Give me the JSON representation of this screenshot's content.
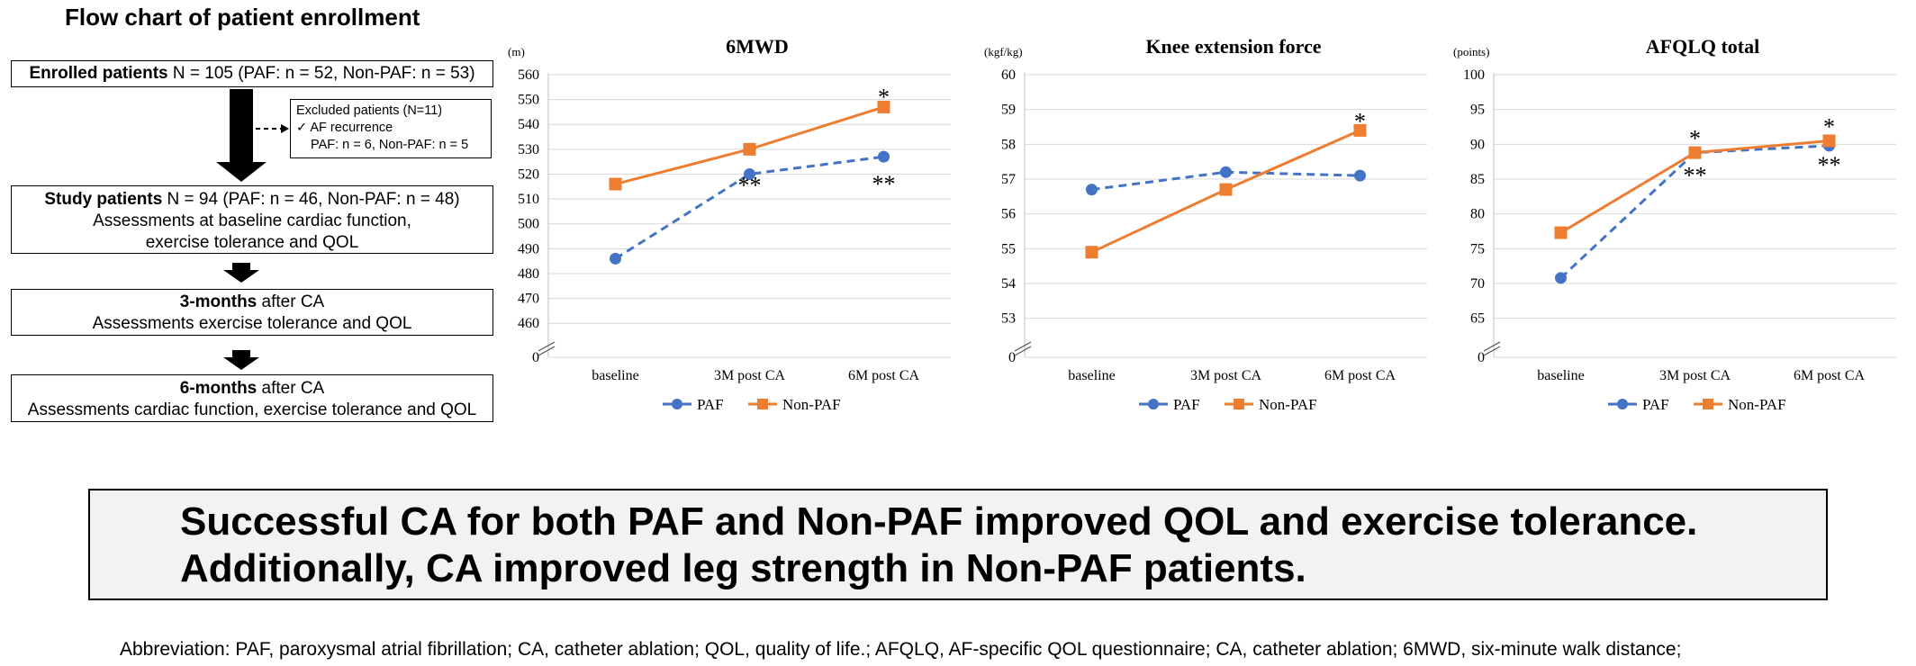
{
  "flowchart": {
    "title": "Flow chart of patient enrollment",
    "enrolled": {
      "bold": "Enrolled patients",
      "rest": " N = 105 (PAF: n = 52, Non-PAF: n = 53)"
    },
    "excluded": {
      "line1": "Excluded patients  (N=11)",
      "line2": "✓  AF recurrence",
      "line3": "PAF: n = 6, Non-PAF: n = 5"
    },
    "study": {
      "bold": "Study patients",
      "rest": " N = 94 (PAF: n = 46, Non-PAF: n = 48)",
      "line2": "Assessments at baseline cardiac function,",
      "line3": "exercise tolerance and QOL"
    },
    "three_months": {
      "bold": "3-months",
      "rest": " after CA",
      "line2": "Assessments exercise tolerance and QOL"
    },
    "six_months": {
      "bold": "6-months",
      "rest": " after CA",
      "line2": "Assessments cardiac function, exercise tolerance and QOL"
    }
  },
  "colors": {
    "paf": "#4472C4",
    "nonpaf": "#ED7D31",
    "grid": "#d9d9d9"
  },
  "chart_data": [
    {
      "type": "line",
      "title": "6MWD",
      "unit": "(m)",
      "categories": [
        "baseline",
        "3M post CA",
        "6M post CA"
      ],
      "yticks": [
        "0",
        "460",
        "470",
        "480",
        "490",
        "500",
        "510",
        "520",
        "530",
        "540",
        "550",
        "560"
      ],
      "ylim": [
        455,
        560
      ],
      "axis_break": true,
      "series": [
        {
          "name": "PAF",
          "values": [
            486,
            520,
            527
          ],
          "style": "dashed",
          "marker": "circle"
        },
        {
          "name": "Non-PAF",
          "values": [
            516,
            530,
            547
          ],
          "style": "solid",
          "marker": "square"
        }
      ],
      "annotations": [
        {
          "text": "**",
          "category": 1,
          "value": 516
        },
        {
          "text": "*",
          "category": 2,
          "value": 551.5
        },
        {
          "text": "**",
          "category": 2,
          "value": 516.5
        }
      ],
      "legend": [
        "PAF",
        "Non-PAF"
      ]
    },
    {
      "type": "line",
      "title": "Knee extension force",
      "unit": "(kgf/kg)",
      "categories": [
        "baseline",
        "3M post CA",
        "6M post CA"
      ],
      "yticks": [
        "0",
        "53",
        "54",
        "55",
        "56",
        "57",
        "58",
        "59",
        "60"
      ],
      "ylim": [
        52.5,
        60
      ],
      "axis_break": true,
      "series": [
        {
          "name": "PAF",
          "values": [
            56.7,
            57.2,
            57.1
          ],
          "style": "dashed",
          "marker": "circle"
        },
        {
          "name": "Non-PAF",
          "values": [
            54.9,
            56.7,
            58.4
          ],
          "style": "solid",
          "marker": "square"
        }
      ],
      "annotations": [
        {
          "text": "*",
          "category": 2,
          "value": 58.7
        }
      ],
      "legend": [
        "PAF",
        "Non-PAF"
      ]
    },
    {
      "type": "line",
      "title": "AFQLQ total",
      "unit": "(points)",
      "categories": [
        "baseline",
        "3M post CA",
        "6M post CA"
      ],
      "yticks": [
        "0",
        "65",
        "70",
        "75",
        "80",
        "85",
        "90",
        "95",
        "100"
      ],
      "ylim": [
        62.5,
        100
      ],
      "axis_break": true,
      "series": [
        {
          "name": "PAF",
          "values": [
            70.8,
            88.8,
            89.8
          ],
          "style": "dashed",
          "marker": "circle"
        },
        {
          "name": "Non-PAF",
          "values": [
            77.3,
            88.8,
            90.5
          ],
          "style": "solid",
          "marker": "square"
        }
      ],
      "annotations": [
        {
          "text": "*",
          "category": 1,
          "value": 91
        },
        {
          "text": "**",
          "category": 1,
          "value": 85.7
        },
        {
          "text": "*",
          "category": 2,
          "value": 92.7
        },
        {
          "text": "**",
          "category": 2,
          "value": 87.2
        }
      ],
      "legend": [
        "PAF",
        "Non-PAF"
      ]
    }
  ],
  "summary": {
    "line1": "Successful CA for both PAF and Non-PAF improved QOL and exercise tolerance.",
    "line2": "Additionally, CA improved leg strength in Non-PAF patients."
  },
  "abbreviation": "Abbreviation: PAF, paroxysmal atrial fibrillation; CA, catheter ablation; QOL, quality of life.; AFQLQ, AF-specific QOL questionnaire; CA, catheter ablation; 6MWD, six-minute walk distance;"
}
